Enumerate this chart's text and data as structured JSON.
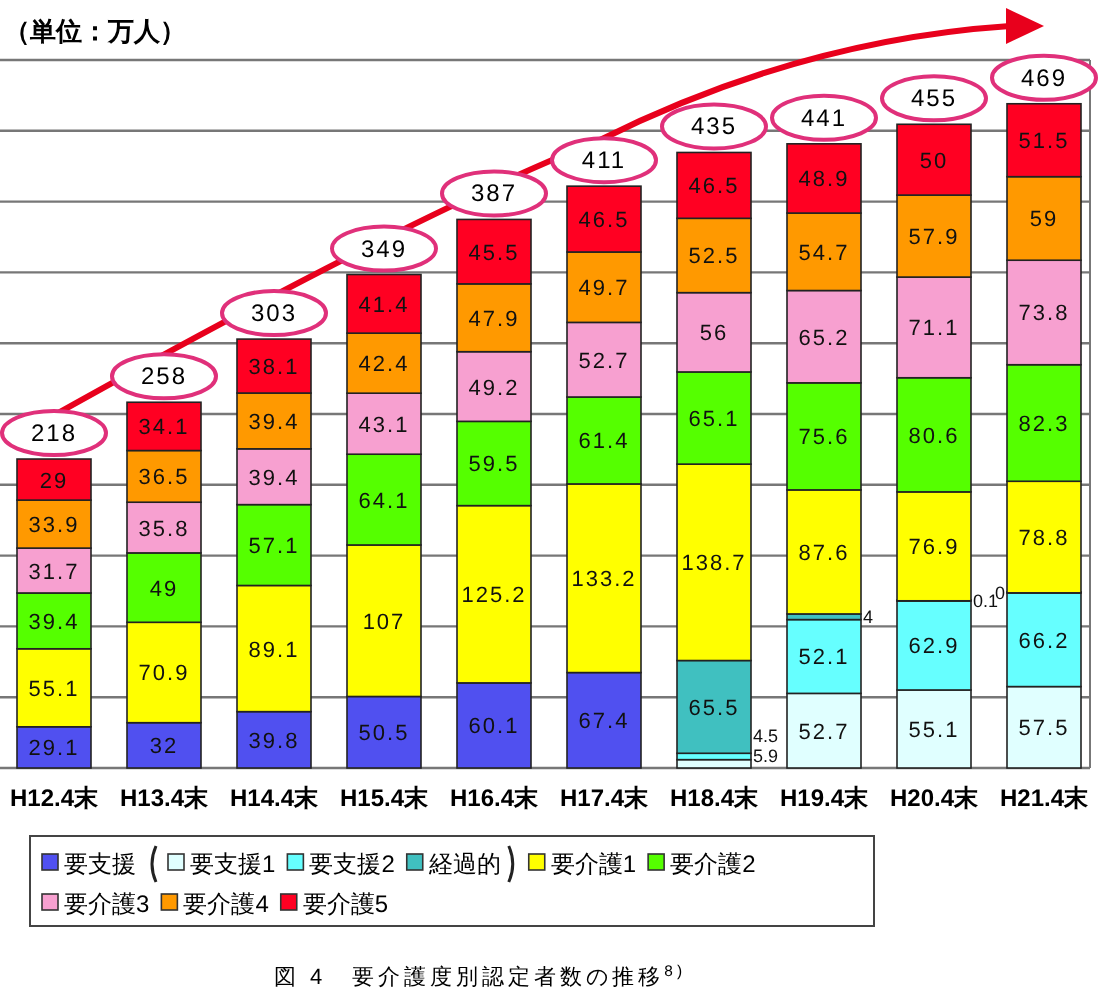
{
  "chart_data": {
    "type": "bar",
    "stacked": true,
    "data_labels": true,
    "grid": "y",
    "tick_labels": "x",
    "legend": "bottom",
    "categories": [
      "H12.4末",
      "H13.4末",
      "H14.4末",
      "H15.4末",
      "H16.4末",
      "H17.4末",
      "H18.4末",
      "H19.4末",
      "H20.4末",
      "H21.4末"
    ],
    "ylim": [
      0,
      500
    ],
    "yticks": [
      {
        "value": 0,
        "label": null
      },
      {
        "value": 50,
        "label": null
      },
      {
        "value": 100,
        "label": null
      },
      {
        "value": 150,
        "label": null
      },
      {
        "value": 200,
        "label": null
      },
      {
        "value": 250,
        "label": null
      },
      {
        "value": 300,
        "label": null
      },
      {
        "value": 350,
        "label": null
      },
      {
        "value": 400,
        "label": null
      },
      {
        "value": 450,
        "label": null
      },
      {
        "value": 500,
        "label": null
      }
    ],
    "series": [
      {
        "name": "要支援",
        "color": "#5050f0",
        "values": [
          29.1,
          32,
          39.8,
          50.5,
          60.1,
          67.4,
          null,
          null,
          null,
          null
        ]
      },
      {
        "name": "要支援1",
        "color": "#e0ffff",
        "values": [
          null,
          null,
          null,
          null,
          null,
          null,
          5.9,
          52.7,
          55.1,
          57.5
        ]
      },
      {
        "name": "要支援2",
        "color": "#66ffff",
        "values": [
          null,
          null,
          null,
          null,
          null,
          null,
          4.5,
          52.1,
          62.9,
          66.2
        ]
      },
      {
        "name": "経過的",
        "color": "#40c0c0",
        "values": [
          null,
          null,
          null,
          null,
          null,
          null,
          65.5,
          4,
          0.1,
          0
        ]
      },
      {
        "name": "要介護1",
        "color": "#ffff00",
        "values": [
          55.1,
          70.9,
          89.1,
          107,
          125.2,
          133.2,
          138.7,
          87.6,
          76.9,
          78.8
        ]
      },
      {
        "name": "要介護2",
        "color": "#55ff00",
        "values": [
          39.4,
          49,
          57.1,
          64.1,
          59.5,
          61.4,
          65.1,
          75.6,
          80.6,
          82.3
        ]
      },
      {
        "name": "要介護3",
        "color": "#f7a0d0",
        "values": [
          31.7,
          35.8,
          39.4,
          43.1,
          49.2,
          52.7,
          56,
          65.2,
          71.1,
          73.8
        ]
      },
      {
        "name": "要介護4",
        "color": "#ff9900",
        "values": [
          33.9,
          36.5,
          39.4,
          42.4,
          47.9,
          49.7,
          52.5,
          54.7,
          57.9,
          59
        ]
      },
      {
        "name": "要介護5",
        "color": "#ff0022",
        "values": [
          29,
          34.1,
          38.1,
          41.4,
          45.5,
          46.5,
          46.5,
          48.9,
          50,
          51.5
        ]
      }
    ],
    "totals": [
      "218",
      "258",
      "303",
      "349",
      "387",
      "411",
      "435",
      "441",
      "455",
      "469"
    ],
    "annotations": [
      "（単位：万人）",
      "図 4　要介護度別認定者数の推移$^{8)}$"
    ]
  }
}
